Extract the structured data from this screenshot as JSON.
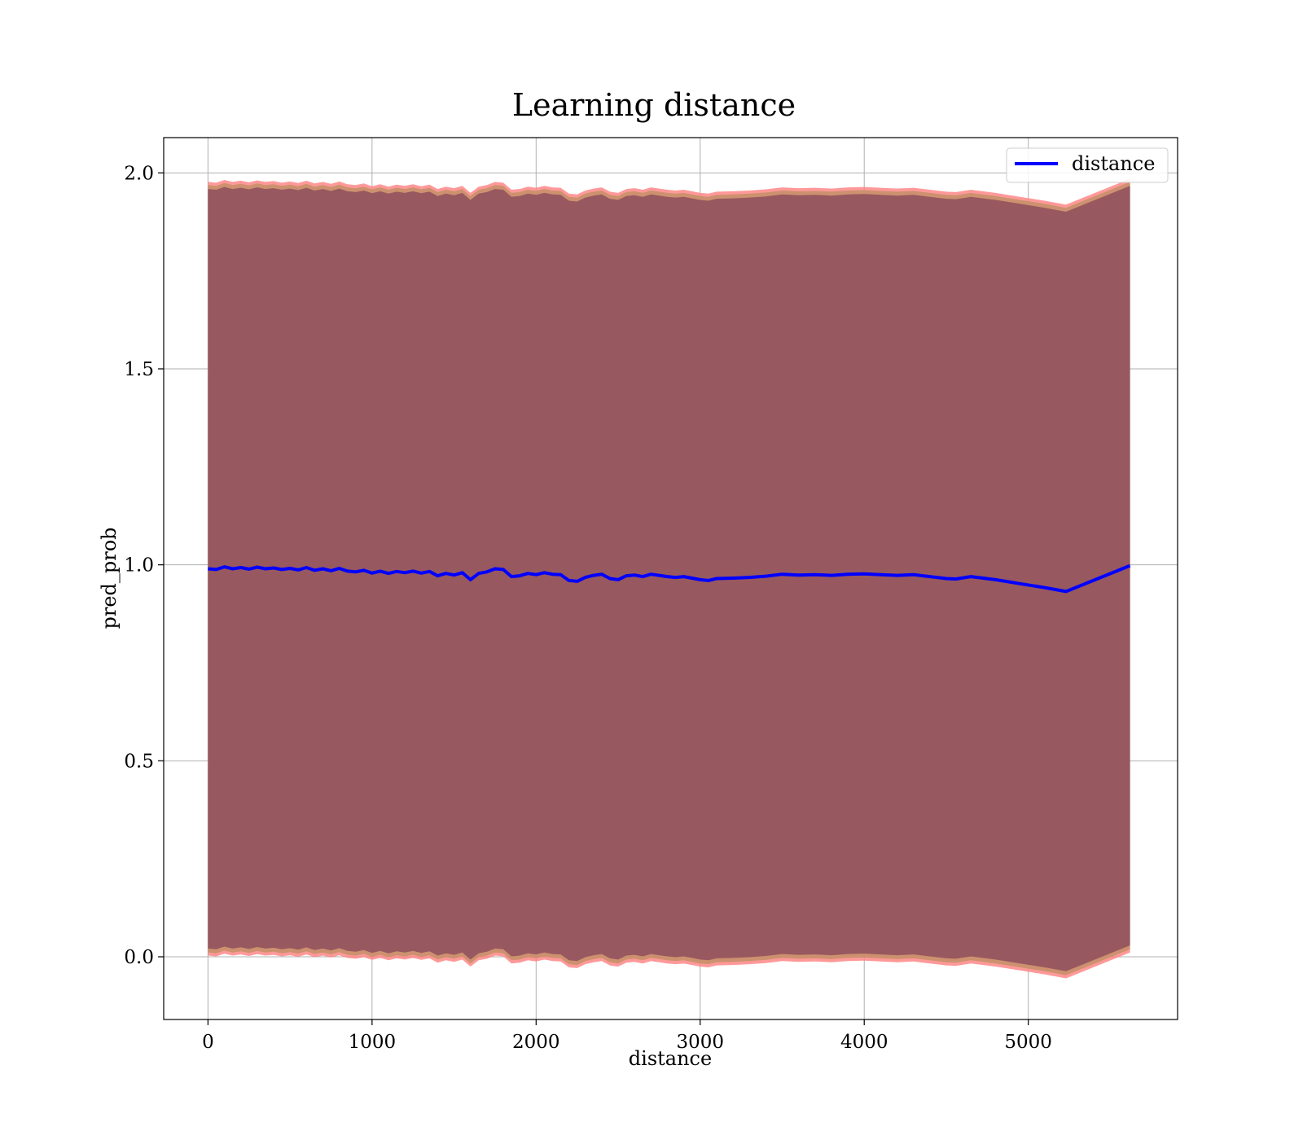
{
  "chart_data": {
    "type": "line",
    "title": "Learning distance",
    "xlabel": "distance",
    "ylabel": "pred_prob",
    "xlim": [
      -270,
      5910
    ],
    "ylim": [
      -0.16,
      2.09
    ],
    "xticks": [
      0,
      1000,
      2000,
      3000,
      4000,
      5000
    ],
    "xtick_labels": [
      "0",
      "1000",
      "2000",
      "3000",
      "4000",
      "5000"
    ],
    "yticks": [
      0.0,
      0.5,
      1.0,
      1.5,
      2.0
    ],
    "ytick_labels": [
      "0.0",
      "0.5",
      "1.0",
      "1.5",
      "2.0"
    ],
    "grid": true,
    "legend": {
      "placement": "top-right",
      "entries": [
        "distance"
      ]
    },
    "colors": {
      "line": "#0000ff",
      "band": "#8b4a5c",
      "band_edge": "#ff8080",
      "band_edge_inner": "#c8906a"
    },
    "series": [
      {
        "name": "distance",
        "x": [
          0,
          50,
          100,
          150,
          200,
          250,
          300,
          350,
          400,
          450,
          500,
          550,
          600,
          650,
          700,
          750,
          800,
          850,
          900,
          950,
          1000,
          1050,
          1100,
          1150,
          1200,
          1250,
          1300,
          1350,
          1400,
          1450,
          1500,
          1550,
          1600,
          1650,
          1700,
          1750,
          1800,
          1850,
          1900,
          1950,
          2000,
          2050,
          2100,
          2150,
          2200,
          2250,
          2300,
          2350,
          2400,
          2450,
          2500,
          2550,
          2600,
          2650,
          2700,
          2750,
          2800,
          2850,
          2900,
          2950,
          3000,
          3050,
          3100,
          3200,
          3300,
          3400,
          3500,
          3600,
          3700,
          3800,
          3900,
          4000,
          4100,
          4200,
          4300,
          4400,
          4500,
          4560,
          4650,
          4800,
          4950,
          5100,
          5230,
          5620
        ],
        "y": [
          0.99,
          0.988,
          0.995,
          0.99,
          0.993,
          0.989,
          0.994,
          0.99,
          0.992,
          0.988,
          0.991,
          0.987,
          0.993,
          0.986,
          0.99,
          0.985,
          0.991,
          0.984,
          0.982,
          0.986,
          0.979,
          0.984,
          0.978,
          0.983,
          0.98,
          0.984,
          0.979,
          0.983,
          0.972,
          0.978,
          0.974,
          0.98,
          0.962,
          0.978,
          0.982,
          0.99,
          0.988,
          0.97,
          0.972,
          0.978,
          0.975,
          0.98,
          0.976,
          0.975,
          0.96,
          0.958,
          0.968,
          0.973,
          0.976,
          0.965,
          0.962,
          0.972,
          0.974,
          0.97,
          0.976,
          0.973,
          0.97,
          0.968,
          0.97,
          0.966,
          0.962,
          0.96,
          0.965,
          0.966,
          0.968,
          0.971,
          0.976,
          0.974,
          0.975,
          0.973,
          0.976,
          0.977,
          0.975,
          0.973,
          0.975,
          0.97,
          0.965,
          0.964,
          0.97,
          0.962,
          0.952,
          0.942,
          0.932,
          0.998
        ],
        "band_halfwidth": 0.975
      }
    ]
  }
}
